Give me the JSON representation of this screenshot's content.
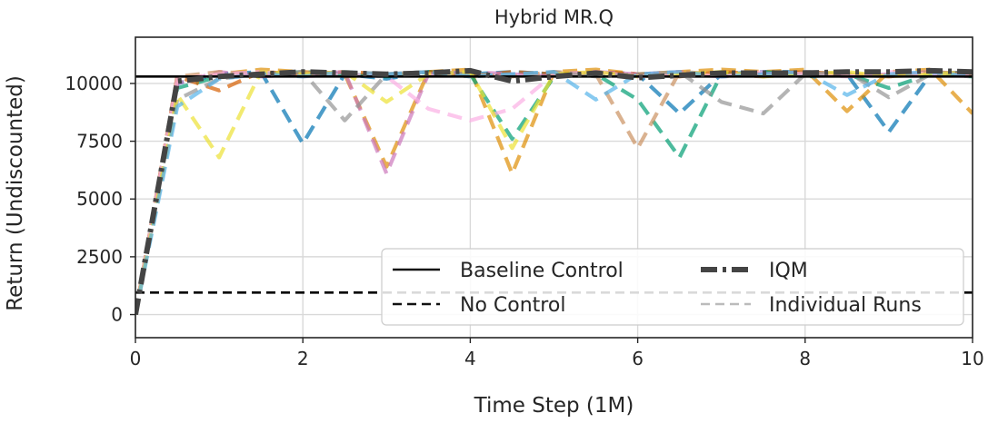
{
  "chart_data": {
    "type": "line",
    "title": "Hybrid MR.Q",
    "xlabel": "Time Step (1M)",
    "ylabel": "Return (Undiscounted)",
    "xlim": [
      0,
      10
    ],
    "ylim": [
      -1000,
      12000
    ],
    "xticks": [
      0,
      2,
      4,
      6,
      8,
      10
    ],
    "yticks": [
      0,
      2500,
      5000,
      7500,
      10000
    ],
    "xtick_labels": [
      "0",
      "2",
      "4",
      "6",
      "8",
      "10"
    ],
    "ytick_labels": [
      "0",
      "2500",
      "5000",
      "7500",
      "10000"
    ],
    "grid": true,
    "legend": {
      "placement": "lower-right",
      "entries": [
        "Baseline Control",
        "No Control",
        "IQM",
        "Individual Runs"
      ]
    },
    "reference_lines": [
      {
        "name": "Baseline Control",
        "y": 10300,
        "style": "solid",
        "color": "#000000"
      },
      {
        "name": "No Control",
        "y": 950,
        "style": "dashed",
        "color": "#000000"
      }
    ],
    "x": [
      0,
      0.5,
      1,
      1.5,
      2,
      2.5,
      3,
      3.5,
      4,
      4.5,
      5,
      5.5,
      6,
      6.5,
      7,
      7.5,
      8,
      8.5,
      9,
      9.5,
      10
    ],
    "iqm": {
      "name": "IQM",
      "color": "#444444",
      "values": [
        0,
        10100,
        10300,
        10400,
        10500,
        10450,
        10400,
        10450,
        10550,
        10100,
        10300,
        10450,
        10250,
        10350,
        10450,
        10450,
        10450,
        10500,
        10500,
        10550,
        10500
      ]
    },
    "runs": [
      {
        "color": "#0173b2",
        "values": [
          0,
          10000,
          10400,
          10500,
          7400,
          10400,
          10200,
          10500,
          10400,
          10500,
          10400,
          10500,
          10400,
          8700,
          10400,
          10500,
          10500,
          10400,
          7900,
          10400,
          10500
        ]
      },
      {
        "color": "#de8f05",
        "values": [
          0,
          10200,
          10400,
          10600,
          10500,
          10400,
          6400,
          10500,
          10600,
          6100,
          10500,
          10600,
          10400,
          10500,
          10600,
          10500,
          10600,
          8800,
          10500,
          10600,
          8700
        ]
      },
      {
        "color": "#029e73",
        "values": [
          0,
          9800,
          10300,
          10400,
          10500,
          10400,
          10300,
          10500,
          10400,
          7600,
          10300,
          10400,
          9300,
          6800,
          10400,
          10500,
          10300,
          10400,
          9800,
          10400,
          10300
        ]
      },
      {
        "color": "#d55e00",
        "values": [
          0,
          10300,
          9700,
          10500,
          10400,
          10500,
          10400,
          10500,
          10300,
          10500,
          10400,
          10500,
          10400,
          10300,
          10500,
          10400,
          10500,
          10400,
          10300,
          10500,
          10400
        ]
      },
      {
        "color": "#cc78bc",
        "values": [
          0,
          10000,
          10500,
          10300,
          10400,
          10500,
          6100,
          10400,
          10500,
          10400,
          10300,
          10500,
          10400,
          10500,
          10300,
          10400,
          10500,
          10300,
          10400,
          10500,
          10400
        ]
      },
      {
        "color": "#ca9161",
        "values": [
          0,
          10300,
          10500,
          10400,
          10500,
          10300,
          10400,
          10500,
          10400,
          10300,
          10500,
          10400,
          7200,
          10500,
          10400,
          10300,
          10500,
          10400,
          10300,
          10500,
          10400
        ]
      },
      {
        "color": "#fbafe4",
        "values": [
          0,
          10200,
          10400,
          10500,
          10300,
          10400,
          10300,
          8900,
          8400,
          8900,
          10400,
          10500,
          10300,
          10400,
          10300,
          10500,
          10400,
          10300,
          10500,
          10400,
          10300
        ]
      },
      {
        "color": "#949494",
        "values": [
          0,
          9300,
          10200,
          10400,
          10500,
          8400,
          10400,
          10500,
          10300,
          10400,
          10500,
          10300,
          10400,
          10500,
          9200,
          8700,
          10400,
          10500,
          9400,
          10400,
          10500
        ]
      },
      {
        "color": "#ece133",
        "values": [
          0,
          9500,
          6800,
          10500,
          10400,
          10500,
          9200,
          10400,
          10500,
          7200,
          10400,
          10500,
          10300,
          10400,
          10500,
          10300,
          10400,
          10500,
          10300,
          10400,
          10500
        ]
      },
      {
        "color": "#56b4e9",
        "values": [
          0,
          9000,
          10200,
          10400,
          10300,
          10500,
          10400,
          10500,
          10300,
          10400,
          10500,
          9300,
          10400,
          10500,
          10300,
          10400,
          10500,
          9500,
          10400,
          10500,
          10300
        ]
      }
    ]
  }
}
